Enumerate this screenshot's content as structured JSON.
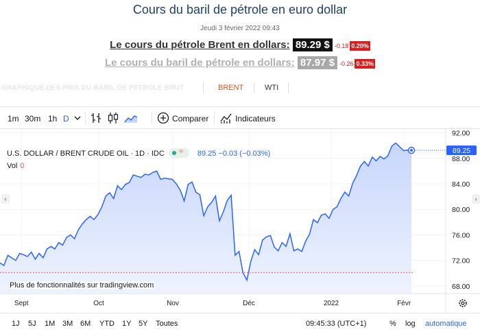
{
  "page": {
    "title": "Cours du baril de pétrole en euro dollar",
    "date": "Jeudi 3 février 2022 09:43"
  },
  "prices": {
    "brent": {
      "label": "Le cours du pétrole Brent en dollars:",
      "value": "89.29 $",
      "change": "-0.18",
      "percent": "0.20%"
    },
    "baril": {
      "label": "Le cours du baril de pétrole en dollars:",
      "value": "87.97 $",
      "change": "-0.26",
      "percent": "0.33%"
    }
  },
  "chart_tabs": {
    "caption": "GRAPHIQUE DES PRIX DU BARIL DE PÉTROLE BRUT",
    "tabs": [
      "BRENT",
      "WTI"
    ],
    "active": "BRENT"
  },
  "toolbar": {
    "timeframes": [
      "1m",
      "30m",
      "1h",
      "D"
    ],
    "active_timeframe": "D",
    "compare_label": "Comparer",
    "indicators_label": "Indicateurs"
  },
  "legend": {
    "symbol": "U.S. DOLLAR / BRENT CRUDE OIL · 1D · IDC",
    "quote": "89.25 −0.03 (−0.03%)",
    "vol_label": "Vol",
    "vol_value": "0",
    "approx_symbol": "≈"
  },
  "watermark": "Plus de fonctionnalités sur tradingview.com",
  "bottom": {
    "ranges": [
      "1J",
      "5J",
      "1M",
      "3M",
      "6M",
      "YTD",
      "1Y",
      "5Y",
      "Toutes"
    ],
    "time": "09:45:33 (UTC+1)",
    "percent_label": "%",
    "log_label": "log",
    "auto_label": "automatique"
  },
  "colors": {
    "line": "#2962ff",
    "area_top": "#c7d6fb",
    "area_bottom": "#eef3fe",
    "price_tag": "#2962ff",
    "dashed_red": "#ef5350"
  },
  "chart_data": {
    "type": "area",
    "x_tick_labels": [
      "Sept",
      "Oct",
      "Nov",
      "Déc",
      "2022",
      "Févr"
    ],
    "y_tick_labels": [
      "92.00",
      "88.00",
      "84.00",
      "80.00",
      "76.00",
      "72.00",
      "68.00"
    ],
    "ylim": [
      66.8,
      92.6
    ],
    "last_price_tag": "89.25",
    "series": [
      {
        "values": [
          71.6,
          71.2,
          72.8,
          72.4,
          72.0,
          73.1,
          72.9,
          72.6,
          73.3,
          72.2,
          73.1,
          72.4,
          73.8,
          74.2,
          73.8,
          74.8,
          74.4,
          75.6,
          76.0,
          75.4,
          76.8,
          77.7,
          78.4,
          78.9,
          78.4,
          79.2,
          80.4,
          82.1,
          82.6,
          81.7,
          83.7,
          83.1,
          83.9,
          84.2,
          85.4,
          85.2,
          85.0,
          85.5,
          85.4,
          85.8,
          86.0,
          84.7,
          84.9,
          84.8,
          84.7,
          84.0,
          83.0,
          81.3,
          83.9,
          84.3,
          82.7,
          82.3,
          79.0,
          80.4,
          81.1,
          82.1,
          78.2,
          79.6,
          81.4,
          82.2,
          72.8,
          73.4,
          70.1,
          68.9,
          71.8,
          73.7,
          72.9,
          75.2,
          75.7,
          75.9,
          74.1,
          73.5,
          74.8,
          74.2,
          76.2,
          73.5,
          73.8,
          73.4,
          75.0,
          76.1,
          78.4,
          77.9,
          79.1,
          79.3,
          78.6,
          80.0,
          80.4,
          81.7,
          82.7,
          82.1,
          84.1,
          85.3,
          86.8,
          87.5,
          86.8,
          88.2,
          87.6,
          88.3,
          87.9,
          88.4,
          89.9,
          90.4,
          89.8,
          89.2,
          89.3,
          89.25
        ]
      }
    ]
  }
}
